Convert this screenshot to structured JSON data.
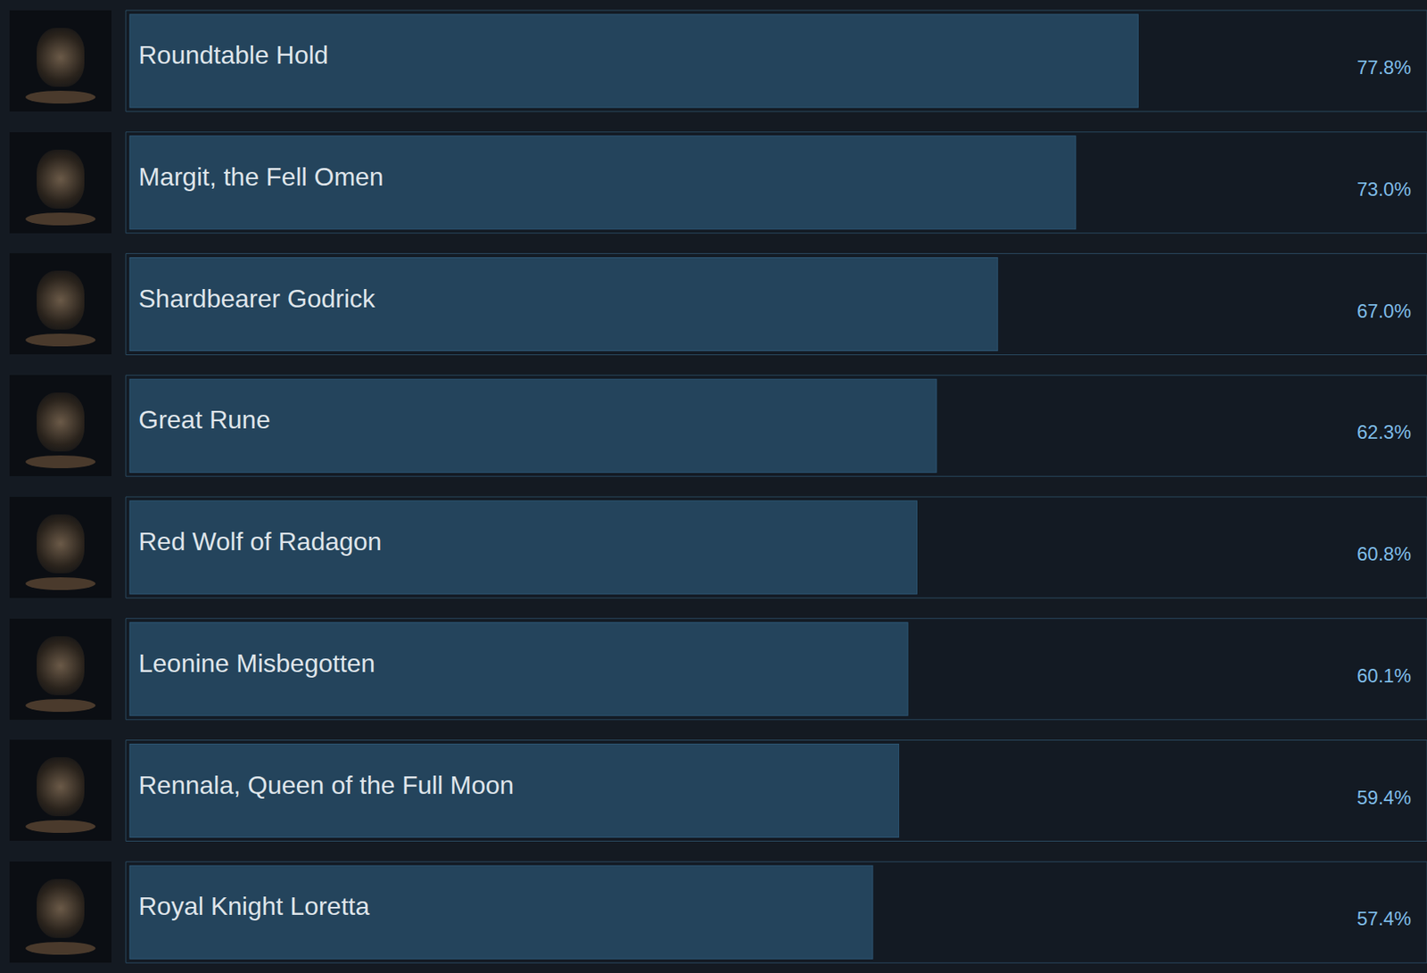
{
  "chart_data": {
    "type": "bar",
    "orientation": "horizontal",
    "categories": [
      "Roundtable Hold",
      "Margit, the Fell Omen",
      "Shardbearer Godrick",
      "Great Rune",
      "Red Wolf of Radagon",
      "Leonine Misbegotten",
      "Rennala, Queen of the Full Moon",
      "Royal Knight Loretta"
    ],
    "values": [
      77.8,
      73.0,
      67.0,
      62.3,
      60.8,
      60.1,
      59.4,
      57.4
    ],
    "value_labels": [
      "77.8%",
      "73.0%",
      "67.0%",
      "62.3%",
      "60.8%",
      "60.1%",
      "59.4%",
      "57.4%"
    ],
    "xlim": [
      0,
      100
    ],
    "color": "#24445c",
    "data_labels": true,
    "tick_labels": false
  }
}
